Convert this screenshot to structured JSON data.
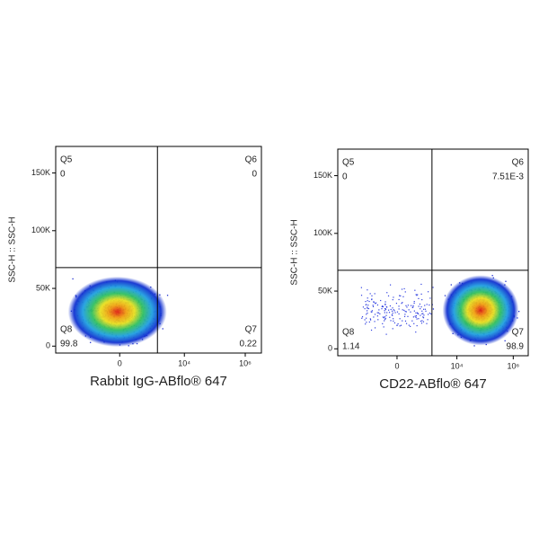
{
  "chart_data": [
    {
      "type": "scatter",
      "x_label": "Rabbit IgG-ABflo® 647",
      "y_label": "SSC-H :: SSC-H",
      "xscale": "biexponential",
      "xlim": [
        -9500,
        3400000
      ],
      "xticks": [
        0,
        {
          "value": 10000,
          "label": "10⁴"
        },
        {
          "value": 1000000,
          "label": "10⁶"
        }
      ],
      "ylim": [
        -6000,
        173000
      ],
      "yticks": [
        0,
        {
          "value": 50000,
          "label": "50K"
        },
        {
          "value": 100000,
          "label": "100K"
        },
        {
          "value": 150000,
          "label": "150K"
        }
      ],
      "gate_x": 1300,
      "gate_y": 68000,
      "quadrants": {
        "names": [
          "Q5",
          "Q6",
          "Q7",
          "Q8"
        ],
        "values": [
          0,
          0,
          0.22,
          99.8
        ]
      }
    },
    {
      "type": "scatter",
      "x_label": "CD22-ABflo® 647",
      "y_label": "SSC-H :: SSC-H",
      "xscale": "biexponential",
      "xlim": [
        -9500,
        3400000
      ],
      "xticks": [
        0,
        {
          "value": 10000,
          "label": "10⁴"
        },
        {
          "value": 1000000,
          "label": "10⁶"
        }
      ],
      "ylim": [
        -6000,
        173000
      ],
      "yticks": [
        0,
        {
          "value": 50000,
          "label": "50K"
        },
        {
          "value": 100000,
          "label": "100K"
        },
        {
          "value": 150000,
          "label": "150K"
        }
      ],
      "gate_x": 1300,
      "gate_y": 68000,
      "quadrants": {
        "names": [
          "Q5",
          "Q6",
          "Q7",
          "Q8"
        ],
        "values": [
          0,
          0.00751,
          98.9,
          1.14
        ],
        "value_labels": [
          "0",
          "7.51E-3",
          "98.9",
          "1.14"
        ]
      }
    }
  ]
}
